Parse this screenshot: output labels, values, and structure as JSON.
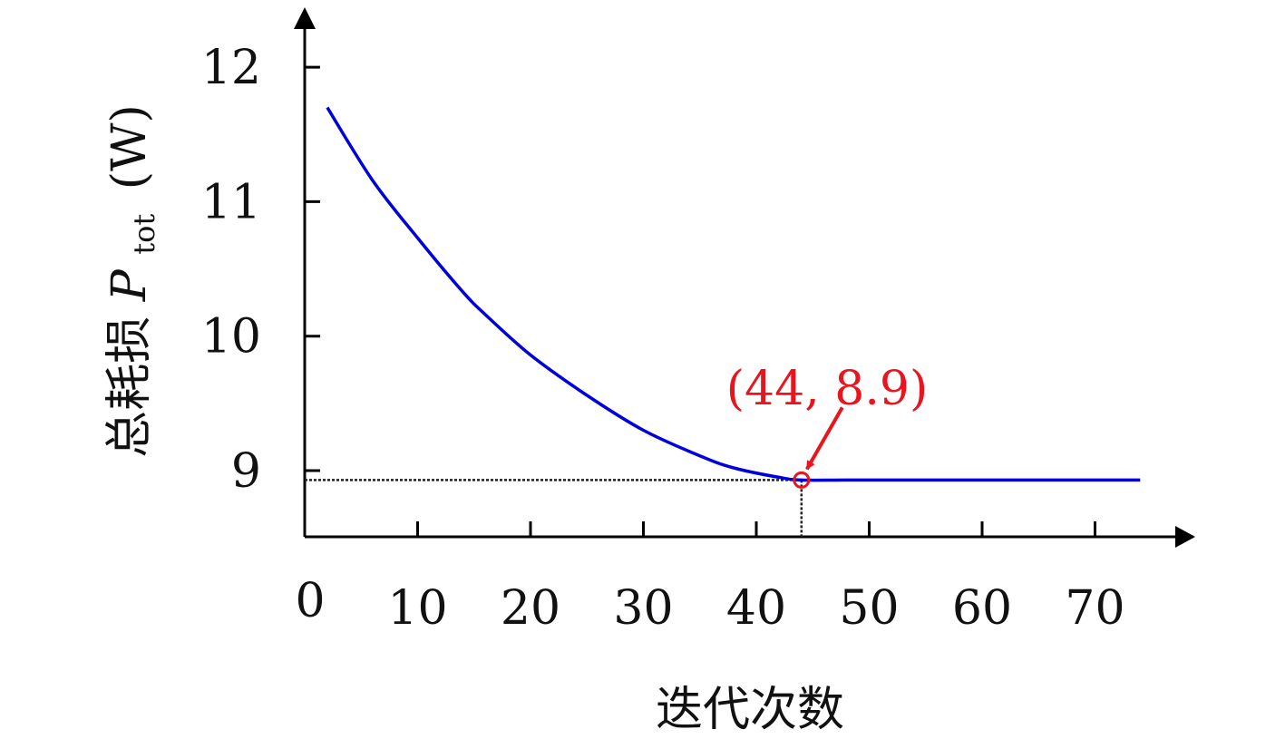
{
  "chart_data": {
    "type": "line",
    "xlabel": "迭代次数",
    "ylabel": {
      "prefix": "总耗损",
      "symbol": "P",
      "subscript": "tot",
      "unit": "(W)"
    },
    "xlim": [
      0,
      75
    ],
    "ylim": [
      8.5,
      12.5
    ],
    "x_ticks": [
      0,
      10,
      20,
      30,
      40,
      50,
      60,
      70
    ],
    "x_tick_labels": [
      "0",
      "10",
      "20",
      "30",
      "40",
      "50",
      "60",
      "70"
    ],
    "y_ticks": [
      9,
      10,
      11,
      12
    ],
    "y_tick_labels": [
      "9",
      "10",
      "11",
      "12"
    ],
    "grid": false,
    "series": [
      {
        "color": "#0000dd",
        "x": [
          2,
          6,
          10,
          14,
          16,
          20,
          25,
          30,
          35,
          38,
          42,
          44,
          48,
          55,
          65,
          74
        ],
        "y": [
          11.7,
          11.16,
          10.73,
          10.33,
          10.16,
          9.86,
          9.56,
          9.3,
          9.11,
          9.02,
          8.95,
          8.93,
          8.93,
          8.93,
          8.93,
          8.93
        ]
      }
    ],
    "annotation": {
      "text": "(44, 8.9)",
      "point": {
        "x": 44,
        "y": 8.93
      },
      "color": "#e8141e"
    },
    "reference_line_color": "#222222"
  }
}
